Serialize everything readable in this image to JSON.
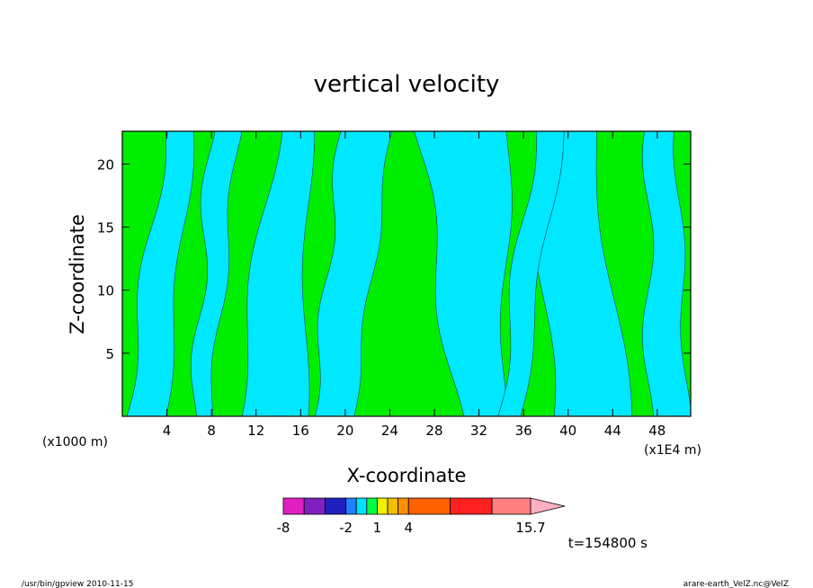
{
  "chart_data": {
    "type": "heatmap",
    "title": "vertical velocity",
    "xlabel": "X-coordinate",
    "ylabel": "Z-coordinate",
    "x_unit_left": "(x1000 m)",
    "x_unit_right": "(x1E4 m)",
    "x_ticks": [
      "4",
      "8",
      "12",
      "16",
      "20",
      "24",
      "28",
      "32",
      "36",
      "40",
      "44",
      "48"
    ],
    "x_tick_values": [
      4,
      8,
      12,
      16,
      20,
      24,
      28,
      32,
      36,
      40,
      44,
      48
    ],
    "y_ticks": [
      "5",
      "10",
      "15",
      "20"
    ],
    "y_tick_values": [
      5,
      10,
      15,
      20
    ],
    "xlim": [
      0,
      51
    ],
    "ylim": [
      0,
      22.6
    ],
    "colorbar": {
      "levels": [
        -8,
        -6,
        -4,
        -2,
        -1,
        0,
        1,
        2,
        3,
        4,
        8,
        12,
        15.7
      ],
      "colors": [
        "#e020c0",
        "#8020c0",
        "#2020c0",
        "#2080ff",
        "#00e0ff",
        "#00ff40",
        "#f0f000",
        "#f0c000",
        "#ff9000",
        "#ff6000",
        "#ff2020",
        "#ff8080"
      ],
      "arrow_color": "#ffb0c0",
      "labels": [
        "-8",
        "-2",
        "1",
        "4",
        "15.7"
      ],
      "label_values": [
        -8,
        -2,
        1,
        4,
        15.7
      ]
    },
    "field_colors": {
      "negative": "#00e8ff",
      "positive": "#00ee00"
    },
    "legend_placement": "bottom"
  },
  "time_label": "t=154800 s",
  "footer": {
    "left": "/usr/bin/gpview   2010-11-15",
    "right": "arare-earth_VelZ.nc@VelZ"
  }
}
